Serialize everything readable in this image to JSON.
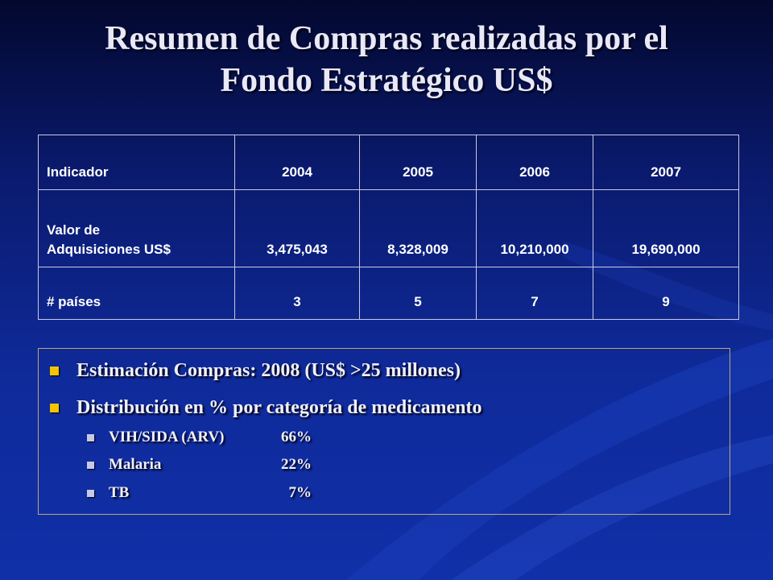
{
  "slide": {
    "title_line1": "Resumen de Compras realizadas por el",
    "title_line2": "Fondo Estratégico US$"
  },
  "table": {
    "headers": [
      "Indicador",
      "2004",
      "2005",
      "2006",
      "2007"
    ],
    "rows": [
      {
        "label_line1": "Valor de",
        "label_line2": "Adquisiciones US$",
        "values": [
          "3,475,043",
          "8,328,009",
          "10,210,000",
          "19,690,000"
        ]
      },
      {
        "label_line1": "# países",
        "values": [
          "3",
          "5",
          "7",
          "9"
        ]
      }
    ]
  },
  "bullets": {
    "estimate": "Estimación Compras: 2008 (US$ >25 millones)",
    "distribution": "Distribución  en % por categoría de medicamento",
    "categories": [
      {
        "name": "VIH/SIDA (ARV)",
        "percent": "66%"
      },
      {
        "name": "Malaria",
        "percent": "22%"
      },
      {
        "name": "TB",
        "percent": "7%"
      }
    ]
  },
  "colors": {
    "background": "#0f2a9a",
    "bullet_level1": "#f4c400",
    "bullet_level2": "#c8c8e8",
    "title_text": "#e8e8f8"
  }
}
